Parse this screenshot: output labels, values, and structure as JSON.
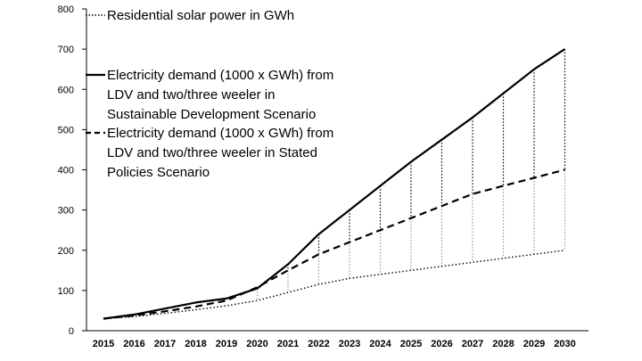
{
  "chart_data": {
    "type": "line",
    "x": [
      2015,
      2016,
      2017,
      2018,
      2019,
      2020,
      2021,
      2022,
      2023,
      2024,
      2025,
      2026,
      2027,
      2028,
      2029,
      2030
    ],
    "x_tick_labels": [
      "2015",
      "2016",
      "2017",
      "2018",
      "2019",
      "2020",
      "2021",
      "2022",
      "2023",
      "2024",
      "2025",
      "2026",
      "2027",
      "2028",
      "2029",
      "2030"
    ],
    "ylim": [
      0,
      800
    ],
    "y_ticks": [
      0,
      100,
      200,
      300,
      400,
      500,
      600,
      700,
      800
    ],
    "y_tick_labels": [
      "0",
      "100",
      "200",
      "300",
      "400",
      "500",
      "600",
      "700",
      "800"
    ],
    "grid": false,
    "legend_position": "top-left",
    "series": [
      {
        "name": "Residential solar power  in GWh",
        "style": "dotted",
        "color": "#000000",
        "values": [
          30,
          35,
          43,
          52,
          62,
          75,
          95,
          115,
          130,
          140,
          150,
          160,
          170,
          180,
          190,
          200
        ]
      },
      {
        "name": "Electricity demand (1000 x GWh) from LDV and two/three weeler in Sustainable Development Scenario",
        "legend_lines": [
          "Electricity demand (1000 x GWh) from",
          "LDV and two/three weeler in",
          "Sustainable Development Scenario"
        ],
        "style": "solid",
        "color": "#000000",
        "values": [
          30,
          40,
          55,
          70,
          80,
          105,
          165,
          240,
          300,
          360,
          420,
          475,
          530,
          590,
          650,
          700
        ]
      },
      {
        "name": "Electricity demand (1000 x GWh) from LDV and two/three weeler in Stated Policies Scenario",
        "legend_lines": [
          "Electricity demand (1000 x GWh) from",
          "LDV and two/three weeler in Stated",
          "Policies Scenario"
        ],
        "style": "dashed",
        "color": "#000000",
        "values": [
          30,
          38,
          48,
          60,
          75,
          108,
          150,
          190,
          220,
          250,
          280,
          310,
          340,
          360,
          380,
          400
        ]
      }
    ],
    "drop_lines": {
      "style": "dotted",
      "from_year": 2020,
      "upper_color": "#000000",
      "lower_color": "#999999"
    }
  }
}
